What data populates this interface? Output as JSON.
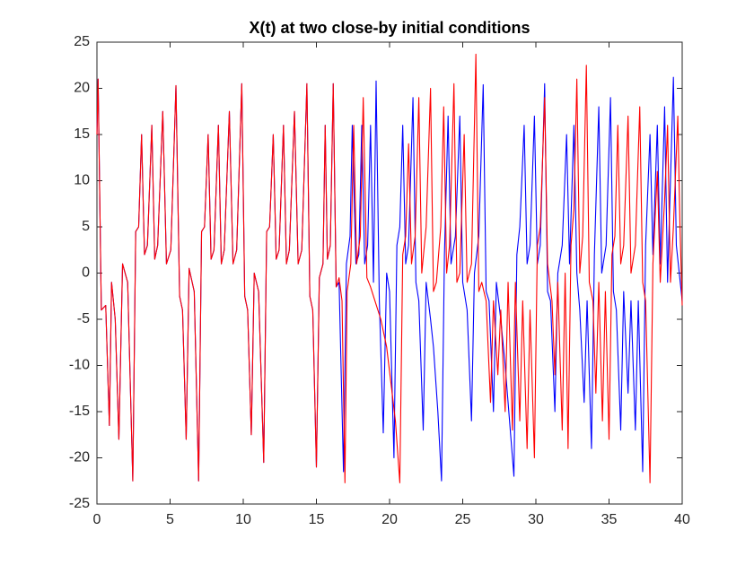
{
  "chart_data": {
    "type": "line",
    "title": "X(t) at two close-by initial conditions",
    "xlim": [
      0,
      40
    ],
    "xticks": [
      0,
      5,
      10,
      15,
      20,
      25,
      30,
      35,
      40
    ],
    "ylim": [
      -25,
      25
    ],
    "yticks": [
      -25,
      -20,
      -15,
      -10,
      -5,
      0,
      5,
      10,
      15,
      20,
      25
    ],
    "grid": false,
    "series": [
      {
        "color": "#0000ff",
        "x": [
          0,
          0.08,
          0.3,
          0.6,
          0.85,
          1.0,
          1.25,
          1.5,
          1.75,
          2.1,
          2.45,
          2.65,
          2.85,
          3.05,
          3.25,
          3.45,
          3.75,
          3.95,
          4.15,
          4.5,
          4.75,
          5.05,
          5.4,
          5.65,
          5.85,
          6.1,
          6.3,
          6.65,
          6.95,
          7.15,
          7.35,
          7.6,
          7.8,
          8.0,
          8.3,
          8.5,
          8.7,
          9.05,
          9.3,
          9.55,
          9.9,
          10.1,
          10.3,
          10.55,
          10.75,
          11.05,
          11.4,
          11.6,
          11.8,
          12.05,
          12.25,
          12.45,
          12.75,
          12.95,
          13.15,
          13.5,
          13.75,
          14.0,
          14.35,
          14.55,
          14.75,
          15.0,
          15.2,
          15.45,
          15.6,
          15.75,
          15.95,
          16.15,
          16.35,
          16.55,
          16.85,
          17.05,
          17.3,
          17.45,
          17.7,
          17.9,
          18.1,
          18.3,
          18.5,
          18.7,
          18.9,
          19.08,
          19.3,
          19.57,
          19.8,
          20.0,
          20.3,
          20.5,
          20.7,
          20.9,
          21.1,
          21.3,
          21.6,
          21.8,
          22.0,
          22.3,
          22.5,
          22.8,
          23.0,
          23.3,
          23.55,
          23.75,
          24.0,
          24.2,
          24.5,
          24.8,
          25.0,
          25.3,
          25.6,
          25.8,
          26.1,
          26.4,
          26.6,
          26.8,
          27.1,
          27.3,
          27.6,
          27.9,
          28.2,
          28.5,
          28.7,
          28.9,
          29.2,
          29.4,
          29.6,
          29.9,
          30.1,
          30.3,
          30.6,
          30.8,
          31.0,
          31.3,
          31.5,
          31.8,
          32.1,
          32.3,
          32.6,
          32.8,
          33.0,
          33.3,
          33.5,
          33.8,
          34.0,
          34.3,
          34.5,
          34.8,
          35.1,
          35.3,
          35.5,
          35.8,
          36.0,
          36.3,
          36.5,
          36.8,
          37.0,
          37.3,
          37.5,
          37.8,
          38.0,
          38.3,
          38.5,
          38.8,
          39.0,
          39.4,
          39.6,
          40.0
        ],
        "values": [
          15,
          21,
          -4,
          -3.5,
          -16.5,
          -1,
          -5,
          -18,
          1,
          -1,
          -22.5,
          4.5,
          5,
          15,
          2,
          3,
          16,
          1.5,
          3,
          17.5,
          1,
          2.5,
          20.3,
          -2.5,
          -4,
          -18,
          0.5,
          -2,
          -22.5,
          4.5,
          5,
          15,
          1.5,
          2.5,
          16,
          1,
          2.5,
          17.5,
          1,
          2.5,
          20.5,
          -2.5,
          -4,
          -17.5,
          0,
          -2,
          -20.5,
          4.5,
          5,
          15,
          1.5,
          2.5,
          16,
          1,
          2.5,
          17.5,
          1,
          2.5,
          20.5,
          -2.5,
          -4,
          -21,
          -0.5,
          1,
          16,
          1.5,
          3,
          20.5,
          -1.5,
          -1,
          -21.5,
          1,
          4,
          16,
          1,
          2,
          16,
          1,
          3,
          16,
          -1,
          20.8,
          -3,
          -17.3,
          0,
          -2,
          -20,
          3,
          5,
          16,
          1,
          3,
          19,
          -1,
          -3,
          -17,
          -1,
          -5,
          -8,
          -15,
          -22.5,
          2,
          17,
          1,
          4,
          17,
          -1,
          -4,
          -16,
          0,
          4,
          20.4,
          -2,
          -3,
          -15,
          -1,
          -5,
          -10,
          -16,
          -22,
          2,
          5,
          16,
          1,
          3,
          17,
          1,
          3,
          20.5,
          -2,
          -3,
          -15,
          0,
          3,
          15,
          1,
          16,
          0,
          -4,
          -14,
          -3,
          -19,
          2,
          18,
          0,
          3,
          19,
          -2,
          -4,
          -17,
          -2,
          -13,
          -3,
          -17,
          -3,
          -21.5,
          3,
          15,
          2,
          16,
          1,
          18,
          -1,
          21.2,
          3,
          -3
        ]
      },
      {
        "color": "#ff0000",
        "x": [
          0,
          0.08,
          0.3,
          0.6,
          0.85,
          1.0,
          1.25,
          1.5,
          1.75,
          2.1,
          2.45,
          2.65,
          2.85,
          3.05,
          3.25,
          3.45,
          3.75,
          3.95,
          4.15,
          4.5,
          4.75,
          5.05,
          5.4,
          5.65,
          5.85,
          6.1,
          6.3,
          6.65,
          6.95,
          7.15,
          7.35,
          7.6,
          7.8,
          8.0,
          8.3,
          8.5,
          8.7,
          9.05,
          9.3,
          9.55,
          9.9,
          10.1,
          10.3,
          10.55,
          10.75,
          11.05,
          11.4,
          11.6,
          11.8,
          12.05,
          12.25,
          12.45,
          12.75,
          12.95,
          13.15,
          13.5,
          13.75,
          14.0,
          14.35,
          14.55,
          14.75,
          15.0,
          15.2,
          15.45,
          15.6,
          15.75,
          15.95,
          16.15,
          16.35,
          16.55,
          16.75,
          16.95,
          17.1,
          17.35,
          17.55,
          17.75,
          18.0,
          18.2,
          18.45,
          18.7,
          19.0,
          19.4,
          19.8,
          20.1,
          20.4,
          20.7,
          20.9,
          21.1,
          21.3,
          21.5,
          21.75,
          22.0,
          22.2,
          22.5,
          22.8,
          23.0,
          23.2,
          23.5,
          23.7,
          23.9,
          24.1,
          24.4,
          24.6,
          24.8,
          25.1,
          25.3,
          25.6,
          25.9,
          26.1,
          26.3,
          26.6,
          26.9,
          27.1,
          27.4,
          27.6,
          27.9,
          28.1,
          28.4,
          28.6,
          28.9,
          29.1,
          29.4,
          29.6,
          29.9,
          30.1,
          30.3,
          30.6,
          30.8,
          31.1,
          31.3,
          31.5,
          31.8,
          32.0,
          32.2,
          32.4,
          32.6,
          32.8,
          33.0,
          33.2,
          33.45,
          33.65,
          33.9,
          34.1,
          34.3,
          34.55,
          34.75,
          35.0,
          35.2,
          35.4,
          35.6,
          35.8,
          36.0,
          36.3,
          36.5,
          36.8,
          37.1,
          37.3,
          37.5,
          37.8,
          38.0,
          38.3,
          38.5,
          38.8,
          39.0,
          39.2,
          39.4,
          39.7,
          39.85,
          40.0
        ],
        "values": [
          15,
          21,
          -4,
          -3.5,
          -16.5,
          -1,
          -5,
          -18,
          1,
          -1,
          -22.5,
          4.5,
          5,
          15,
          2,
          3,
          16,
          1.5,
          3,
          17.5,
          1,
          2.5,
          20.3,
          -2.5,
          -4,
          -18,
          0.5,
          -2,
          -22.5,
          4.5,
          5,
          15,
          1.5,
          2.5,
          16,
          1,
          2.5,
          17.5,
          1,
          2.5,
          20.5,
          -2.5,
          -4,
          -17.5,
          0,
          -2,
          -20.5,
          4.5,
          5,
          15,
          1.5,
          2.5,
          16,
          1,
          2.5,
          17.5,
          1,
          2.5,
          20.5,
          -2.5,
          -4,
          -21,
          -0.5,
          1,
          16,
          1.5,
          3,
          20.5,
          -1.5,
          -0.5,
          -3,
          -22.7,
          -2,
          1,
          16,
          1,
          4,
          19,
          -0.5,
          -1.5,
          -3,
          -5,
          -8,
          -12,
          -16,
          -22.7,
          2,
          4,
          14,
          1,
          4,
          19,
          0,
          5,
          20,
          -2,
          -1,
          5,
          18,
          0,
          3,
          20.5,
          -1,
          0,
          15,
          -1,
          1,
          23.7,
          -2,
          -1,
          -3,
          -14,
          -3,
          -11,
          -4,
          -15,
          -1,
          -17,
          -1,
          -16,
          -3,
          -19,
          -4,
          -20,
          3,
          5,
          19,
          1,
          -3,
          -11,
          -1,
          -17,
          0,
          -19,
          3,
          7,
          21,
          0,
          4,
          22.5,
          -1,
          -3,
          -13,
          -1,
          -16,
          -2,
          -18,
          2,
          4,
          16,
          1,
          3,
          17,
          0,
          3,
          18,
          -1,
          -3,
          -22.7,
          1,
          11,
          -1,
          8,
          16,
          -1,
          5,
          17,
          5,
          -3.5
        ]
      }
    ]
  }
}
